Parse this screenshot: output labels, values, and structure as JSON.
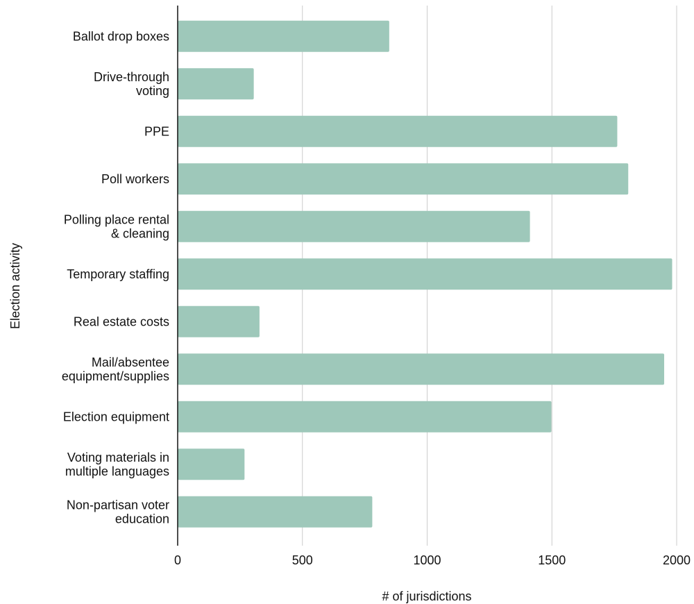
{
  "chart_data": {
    "type": "bar",
    "orientation": "horizontal",
    "title": "",
    "xlabel": "# of jurisdictions",
    "ylabel": "Election activity",
    "xlim": [
      0,
      2000
    ],
    "xticks": [
      0,
      500,
      1000,
      1500,
      2000
    ],
    "grid": "vertical",
    "legend": "none",
    "bar_color": "#9ec8ba",
    "categories": [
      [
        "Ballot drop boxes"
      ],
      [
        "Drive-through",
        "voting"
      ],
      [
        "PPE"
      ],
      [
        "Poll workers"
      ],
      [
        "Polling place rental",
        "& cleaning"
      ],
      [
        "Temporary staffing"
      ],
      [
        "Real estate costs"
      ],
      [
        "Mail/absentee",
        "equipment/supplies"
      ],
      [
        "Election equipment"
      ],
      [
        "Voting materials in",
        "multiple languages"
      ],
      [
        "Non-partisan voter",
        "education"
      ]
    ],
    "values": [
      848,
      305,
      1762,
      1806,
      1412,
      1982,
      328,
      1950,
      1498,
      268,
      780
    ]
  }
}
